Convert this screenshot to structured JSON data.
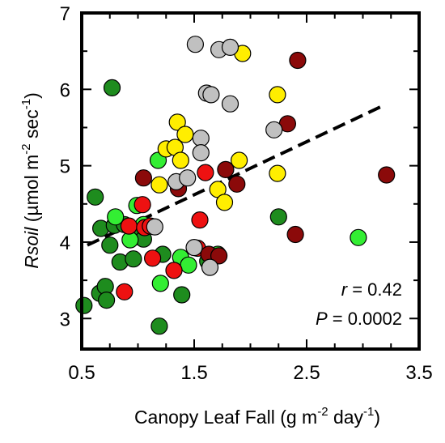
{
  "chart_data": {
    "type": "scatter",
    "title": "",
    "xlabel": "Canopy Leaf Fall (g m⁻² day⁻¹)",
    "ylabel": "Rsoil (µmol m⁻² sec⁻¹)",
    "xlim": [
      0.5,
      3.5
    ],
    "ylim": [
      2.6,
      7.0
    ],
    "x_ticks": [
      "0.5",
      "1.5",
      "2.5",
      "3.5"
    ],
    "y_ticks": [
      "3",
      "4",
      "5",
      "6",
      "7"
    ],
    "grid": false,
    "legend": "none",
    "annotations": {
      "r_symbol": "r",
      "r_value": " = 0.42",
      "p_symbol": "P",
      "p_value": " = 0.0002"
    },
    "fit_line": {
      "style": "dashed",
      "x": [
        0.55,
        3.2
      ],
      "y": [
        3.96,
        5.8
      ]
    },
    "series": [
      {
        "color": "#1e8c1e",
        "points": [
          [
            0.52,
            3.17
          ],
          [
            0.66,
            3.33
          ],
          [
            0.71,
            3.42
          ],
          [
            0.72,
            3.24
          ],
          [
            0.62,
            4.59
          ],
          [
            0.67,
            4.18
          ],
          [
            0.75,
            3.96
          ],
          [
            0.77,
            6.02
          ],
          [
            0.79,
            4.22
          ],
          [
            0.84,
            3.74
          ],
          [
            0.88,
            4.23
          ],
          [
            0.96,
            3.78
          ],
          [
            0.98,
            4.07
          ],
          [
            1.05,
            4.04
          ],
          [
            1.19,
            2.9
          ],
          [
            1.39,
            3.31
          ],
          [
            2.25,
            4.33
          ],
          [
            1.22,
            3.84
          ],
          [
            1.62,
            3.75
          ]
        ]
      },
      {
        "color": "#33ee33",
        "points": [
          [
            0.8,
            4.33
          ],
          [
            0.93,
            4.03
          ],
          [
            0.99,
            4.48
          ],
          [
            1.05,
            4.23
          ],
          [
            1.18,
            5.07
          ],
          [
            1.2,
            3.46
          ],
          [
            1.38,
            3.8
          ],
          [
            1.45,
            3.7
          ],
          [
            1.71,
            3.84
          ],
          [
            2.96,
            4.06
          ]
        ]
      },
      {
        "color": "#ee1111",
        "points": [
          [
            0.88,
            3.35
          ],
          [
            0.92,
            4.21
          ],
          [
            1.04,
            4.49
          ],
          [
            1.06,
            4.19
          ],
          [
            1.11,
            4.21
          ],
          [
            1.13,
            3.79
          ],
          [
            1.32,
            3.63
          ],
          [
            1.53,
            3.92
          ],
          [
            1.55,
            4.29
          ],
          [
            1.6,
            4.91
          ]
        ]
      },
      {
        "color": "#8b0a0a",
        "points": [
          [
            1.05,
            4.84
          ],
          [
            1.36,
            4.7
          ],
          [
            1.63,
            3.84
          ],
          [
            1.72,
            3.82
          ],
          [
            1.78,
            4.95
          ],
          [
            1.88,
            4.76
          ],
          [
            2.33,
            5.55
          ],
          [
            2.4,
            4.1
          ],
          [
            2.42,
            6.38
          ],
          [
            3.21,
            4.88
          ]
        ]
      },
      {
        "color": "#ffee00",
        "points": [
          [
            1.19,
            4.75
          ],
          [
            1.25,
            5.22
          ],
          [
            1.33,
            5.24
          ],
          [
            1.35,
            5.57
          ],
          [
            1.38,
            5.07
          ],
          [
            1.42,
            5.41
          ],
          [
            1.71,
            4.69
          ],
          [
            1.77,
            4.52
          ],
          [
            1.9,
            5.07
          ],
          [
            1.93,
            6.47
          ],
          [
            2.24,
            5.93
          ],
          [
            2.24,
            4.9
          ]
        ]
      },
      {
        "color": "#c0c0c0",
        "points": [
          [
            1.15,
            4.2
          ],
          [
            1.34,
            4.79
          ],
          [
            1.44,
            4.84
          ],
          [
            1.5,
            3.93
          ],
          [
            1.51,
            6.59
          ],
          [
            1.56,
            5.36
          ],
          [
            1.56,
            5.17
          ],
          [
            1.61,
            5.95
          ],
          [
            1.65,
            5.93
          ],
          [
            1.64,
            3.67
          ],
          [
            1.72,
            6.52
          ],
          [
            1.82,
            6.55
          ],
          [
            1.82,
            5.81
          ],
          [
            2.21,
            5.47
          ]
        ]
      }
    ]
  }
}
